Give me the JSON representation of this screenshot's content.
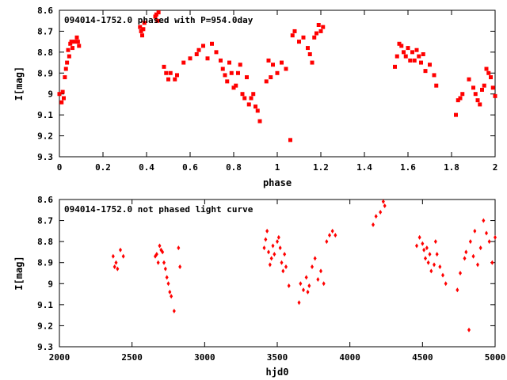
{
  "chart_data": [
    {
      "type": "scatter",
      "title": "094014-1752.0 phased with P=954.0day",
      "xlabel": "phase",
      "ylabel": "I[mag]",
      "xlim": [
        0,
        2
      ],
      "ylim": [
        9.3,
        8.6
      ],
      "y_inverted": true,
      "xticks": [
        "0",
        "0.2",
        "0.4",
        "0.6",
        "0.8",
        "1",
        "1.2",
        "1.4",
        "1.6",
        "1.8",
        "2"
      ],
      "yticks": [
        "8.6",
        "8.7",
        "8.8",
        "8.9",
        "9",
        "9.1",
        "9.2",
        "9.3"
      ],
      "marker_color": "#ff0000",
      "series": [
        {
          "x": [
            0.0,
            0.01,
            0.015,
            0.02,
            0.025,
            0.03,
            0.035,
            0.04,
            0.045,
            0.05,
            0.055,
            0.06,
            0.07,
            0.08,
            0.085,
            0.09,
            0.37,
            0.375,
            0.38,
            0.385,
            0.39,
            0.44,
            0.445,
            0.45,
            0.455,
            0.48,
            0.49,
            0.5,
            0.51,
            0.53,
            0.54,
            0.57,
            0.6,
            0.63,
            0.64,
            0.66,
            0.68,
            0.7,
            0.72,
            0.74,
            0.75,
            0.76,
            0.77,
            0.78,
            0.79,
            0.8,
            0.81,
            0.82,
            0.83,
            0.84,
            0.85,
            0.86,
            0.87,
            0.88,
            0.89,
            0.9,
            0.91,
            0.92,
            0.95,
            0.96,
            0.97,
            0.98,
            1.0,
            1.02,
            1.04,
            1.06,
            1.07,
            1.08,
            1.1,
            1.12,
            1.14,
            1.15,
            1.16,
            1.17,
            1.18,
            1.19,
            1.2,
            1.21,
            1.54,
            1.55,
            1.56,
            1.57,
            1.58,
            1.59,
            1.6,
            1.61,
            1.62,
            1.63,
            1.64,
            1.65,
            1.66,
            1.67,
            1.68,
            1.7,
            1.72,
            1.73,
            1.82,
            1.83,
            1.84,
            1.85,
            1.88,
            1.9,
            1.91,
            1.92,
            1.93,
            1.94,
            1.95,
            1.96,
            1.97,
            1.98,
            1.99,
            2.0
          ],
          "y": [
            9.0,
            9.04,
            8.99,
            9.02,
            8.92,
            8.88,
            8.85,
            8.79,
            8.82,
            8.76,
            8.75,
            8.78,
            8.75,
            8.73,
            8.75,
            8.77,
            8.68,
            8.7,
            8.72,
            8.69,
            8.66,
            8.63,
            8.62,
            8.65,
            8.61,
            8.87,
            8.9,
            8.93,
            8.9,
            8.93,
            8.91,
            8.85,
            8.83,
            8.81,
            8.79,
            8.77,
            8.83,
            8.76,
            8.8,
            8.84,
            8.88,
            8.91,
            8.94,
            8.85,
            8.9,
            8.97,
            8.96,
            8.9,
            8.86,
            9.0,
            9.02,
            8.92,
            9.05,
            9.02,
            9.0,
            9.06,
            9.08,
            9.13,
            8.94,
            8.84,
            8.92,
            8.86,
            8.9,
            8.85,
            8.88,
            9.22,
            8.72,
            8.7,
            8.75,
            8.73,
            8.78,
            8.81,
            8.85,
            8.73,
            8.71,
            8.67,
            8.7,
            8.68,
            8.87,
            8.82,
            8.76,
            8.77,
            8.8,
            8.82,
            8.78,
            8.84,
            8.8,
            8.84,
            8.79,
            8.82,
            8.85,
            8.81,
            8.89,
            8.86,
            8.91,
            8.96,
            9.1,
            9.03,
            9.02,
            9.0,
            8.93,
            8.97,
            9.0,
            9.03,
            9.05,
            8.98,
            8.96,
            8.88,
            8.9,
            8.92,
            8.97,
            9.01
          ]
        }
      ]
    },
    {
      "type": "scatter",
      "title": "094014-1752.0 not phased light curve",
      "xlabel": "hjd0",
      "ylabel": "I[mag]",
      "xlim": [
        2000,
        5000
      ],
      "ylim": [
        9.3,
        8.6
      ],
      "y_inverted": true,
      "xticks": [
        "2000",
        "2500",
        "3000",
        "3500",
        "4000",
        "4500",
        "5000"
      ],
      "yticks": [
        "8.6",
        "8.7",
        "8.8",
        "8.9",
        "9",
        "9.1",
        "9.2",
        "9.3"
      ],
      "marker_color": "#ff0000",
      "series": [
        {
          "x": [
            2370,
            2380,
            2390,
            2400,
            2420,
            2440,
            2660,
            2670,
            2680,
            2690,
            2700,
            2710,
            2720,
            2730,
            2740,
            2750,
            2760,
            2770,
            2790,
            2820,
            2830,
            3410,
            3420,
            3430,
            3440,
            3450,
            3460,
            3470,
            3480,
            3500,
            3510,
            3520,
            3530,
            3540,
            3550,
            3560,
            3580,
            3650,
            3660,
            3680,
            3700,
            3710,
            3720,
            3740,
            3760,
            3780,
            3800,
            3820,
            3840,
            3860,
            3880,
            3900,
            4160,
            4180,
            4210,
            4230,
            4240,
            4460,
            4480,
            4500,
            4510,
            4520,
            4530,
            4540,
            4550,
            4560,
            4580,
            4590,
            4600,
            4620,
            4640,
            4660,
            4740,
            4760,
            4790,
            4800,
            4820,
            4830,
            4850,
            4860,
            4880,
            4900,
            4920,
            4940,
            4960,
            4980,
            5000
          ],
          "y": [
            8.87,
            8.92,
            8.9,
            8.93,
            8.84,
            8.87,
            8.87,
            8.86,
            8.9,
            8.82,
            8.84,
            8.85,
            8.9,
            8.93,
            8.97,
            9.0,
            9.04,
            9.06,
            9.13,
            8.83,
            8.92,
            8.83,
            8.79,
            8.75,
            8.85,
            8.91,
            8.88,
            8.82,
            8.86,
            8.8,
            8.78,
            8.83,
            8.9,
            8.94,
            8.86,
            8.92,
            9.01,
            9.09,
            9.0,
            9.03,
            8.97,
            9.04,
            9.01,
            8.92,
            8.88,
            8.98,
            8.94,
            9.0,
            8.8,
            8.77,
            8.75,
            8.77,
            8.72,
            8.68,
            8.66,
            8.61,
            8.63,
            8.82,
            8.78,
            8.81,
            8.84,
            8.88,
            8.83,
            8.9,
            8.86,
            8.94,
            8.91,
            8.8,
            8.86,
            8.92,
            8.96,
            9.0,
            9.03,
            8.95,
            8.88,
            8.85,
            9.22,
            8.8,
            8.87,
            8.75,
            8.91,
            8.83,
            8.7,
            8.76,
            8.8,
            8.9,
            8.78
          ]
        }
      ]
    }
  ]
}
